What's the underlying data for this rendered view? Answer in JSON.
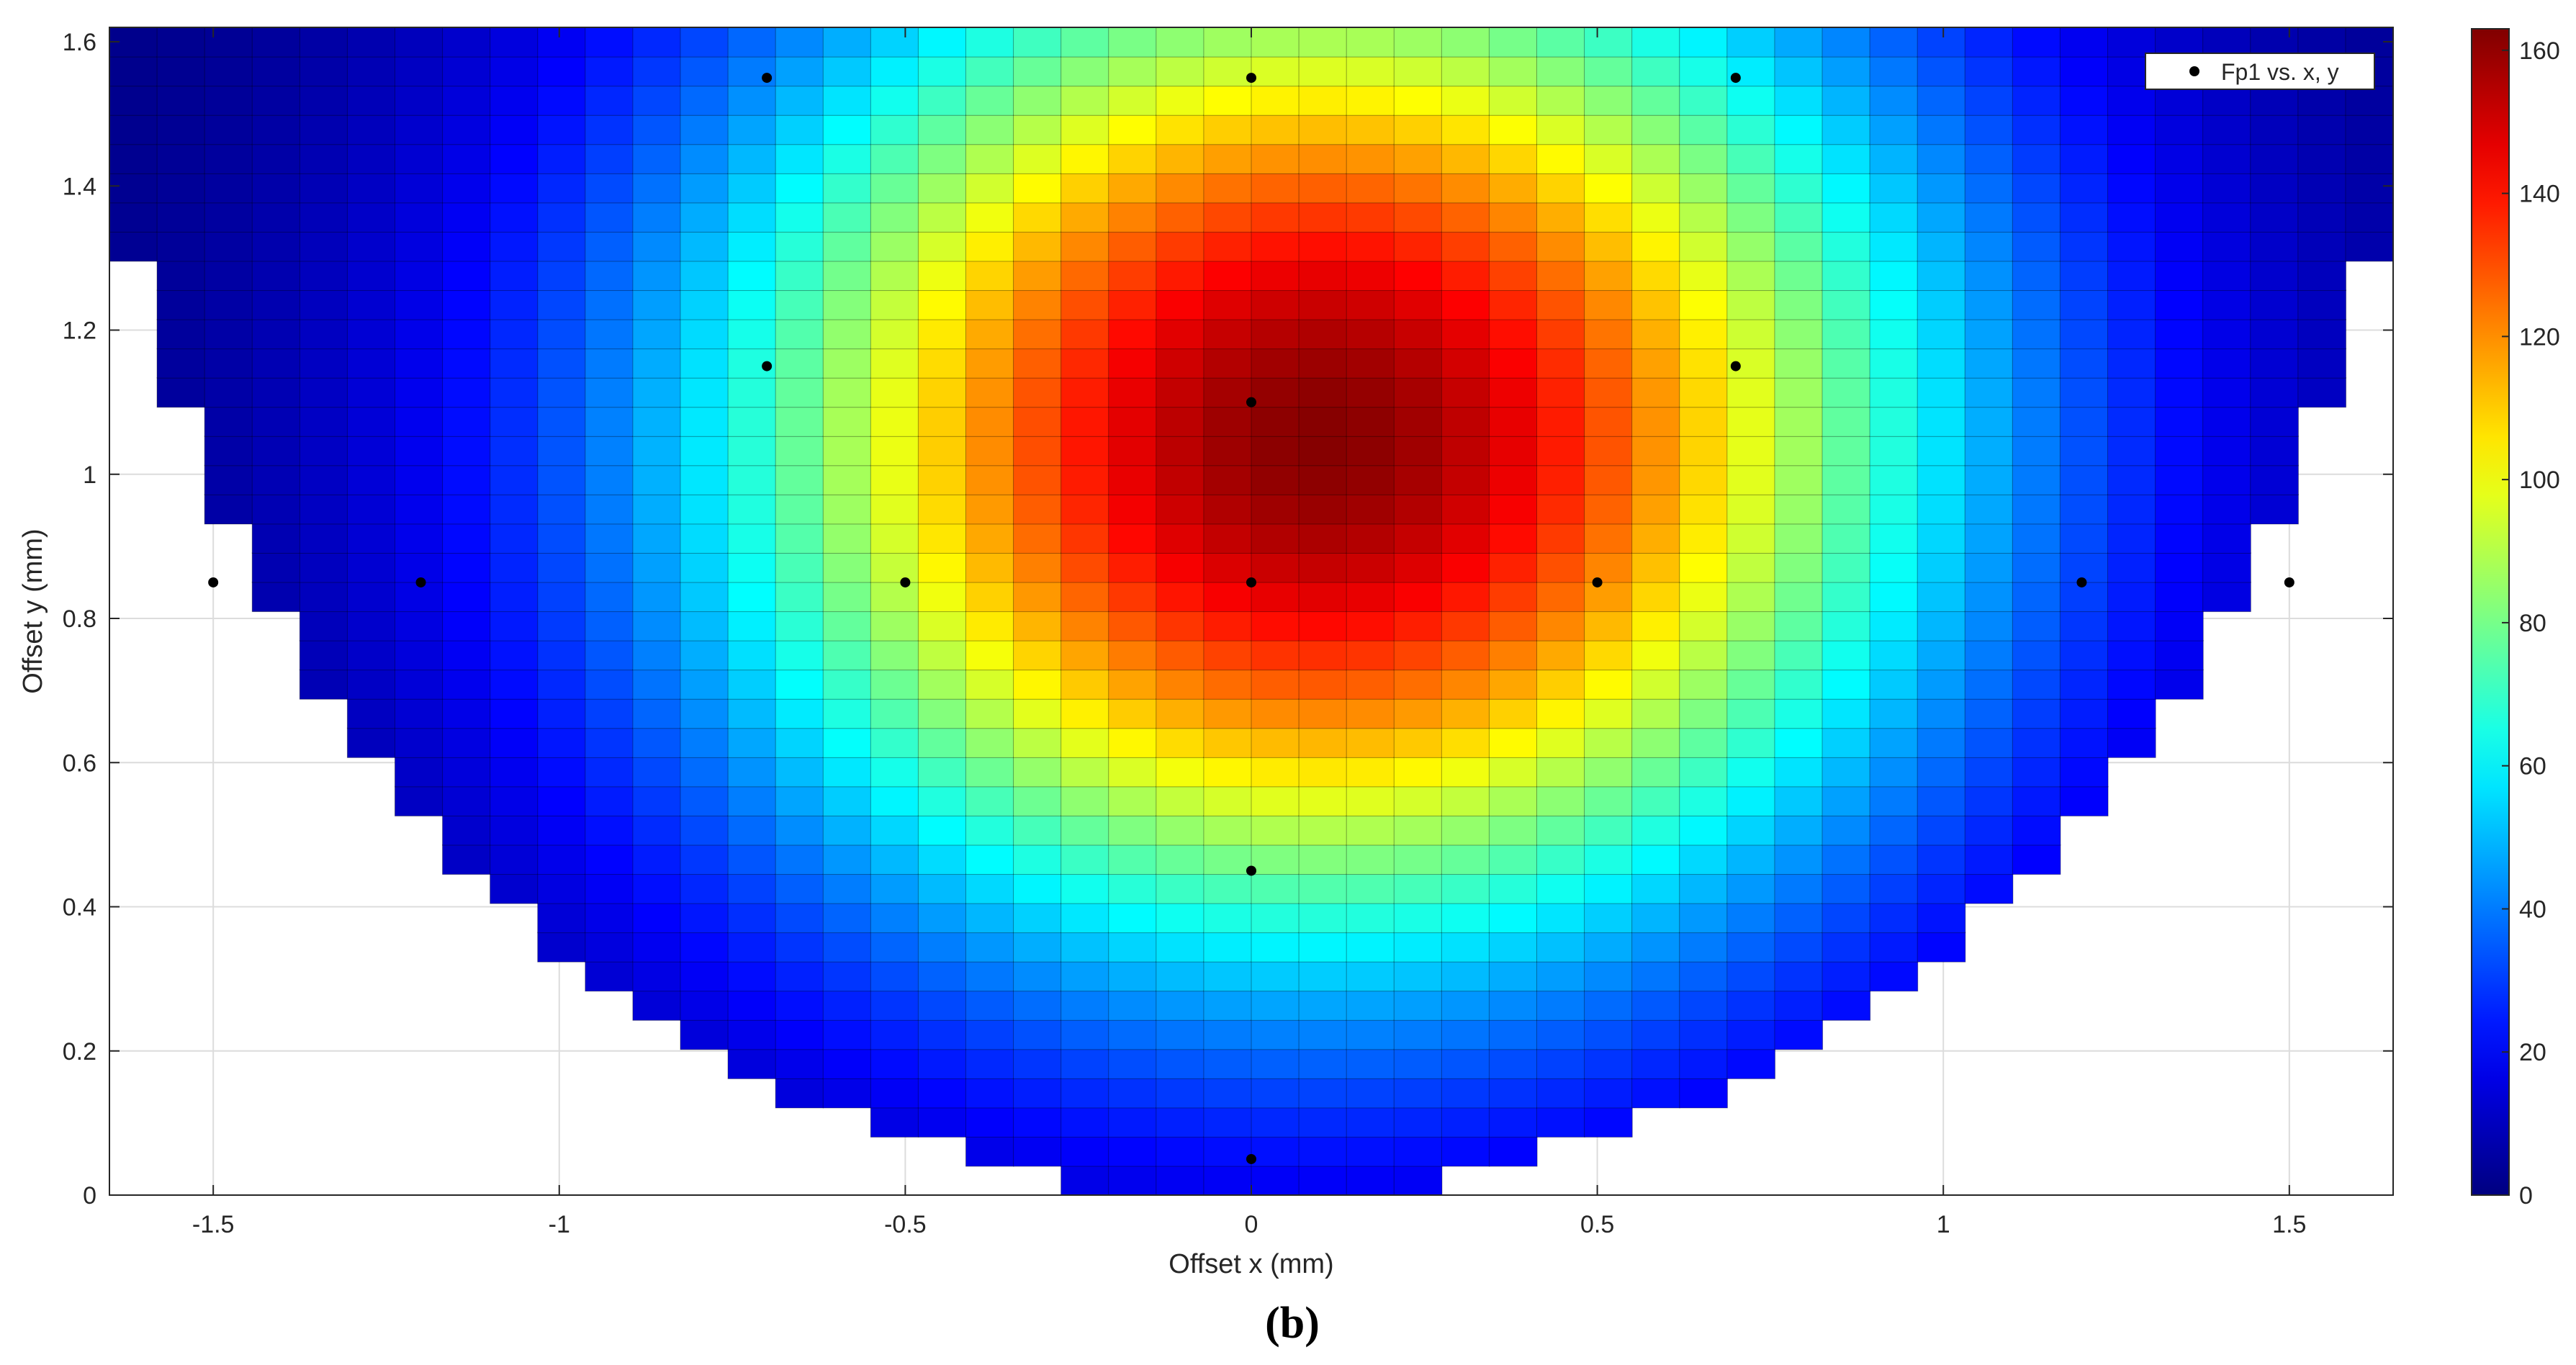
{
  "chart_data": {
    "type": "heatmap",
    "title": "",
    "xlabel": "Offset x (mm)",
    "ylabel": "Offset y (mm)",
    "xlim": [
      -1.65,
      1.65
    ],
    "ylim": [
      0,
      1.62
    ],
    "x_ticks": [
      -1.5,
      -1,
      -0.5,
      0,
      0.5,
      1,
      1.5
    ],
    "x_tick_labels": [
      "-1.5",
      "-1",
      "-0.5",
      "0",
      "0.5",
      "1",
      "1.5"
    ],
    "y_ticks": [
      0,
      0.2,
      0.4,
      0.6,
      0.8,
      1,
      1.2,
      1.4,
      1.6
    ],
    "y_tick_labels": [
      "0",
      "0.2",
      "0.4",
      "0.6",
      "0.8",
      "1",
      "1.2",
      "1.4",
      "1.6"
    ],
    "grid": true,
    "colormap": "jet",
    "color_range": [
      0,
      163
    ],
    "colorbar_ticks": [
      0,
      20,
      40,
      60,
      80,
      100,
      120,
      140,
      160
    ],
    "colorbar_tick_labels": [
      "0",
      "20",
      "40",
      "60",
      "80",
      "100",
      "120",
      "140",
      "160"
    ],
    "grid_columns": 48,
    "grid_rows": 40,
    "peak": {
      "x": 0.1,
      "y": 1.05,
      "value": 162
    },
    "domain_boundary": "circle centered at (0, 1.65) with radius 1.65; region below the arc is empty",
    "legend": {
      "label": "Fp1 vs. x, y",
      "placement": "top-right"
    },
    "series": [
      {
        "name": "Fp1 vs. x, y",
        "marker": "dot",
        "color": "#000000",
        "points": [
          {
            "x": -0.7,
            "y": 1.55
          },
          {
            "x": 0,
            "y": 1.55
          },
          {
            "x": 0.7,
            "y": 1.55
          },
          {
            "x": -0.7,
            "y": 1.15
          },
          {
            "x": 0,
            "y": 1.1
          },
          {
            "x": 0.7,
            "y": 1.15
          },
          {
            "x": -1.5,
            "y": 0.85
          },
          {
            "x": -1.2,
            "y": 0.85
          },
          {
            "x": -0.5,
            "y": 0.85
          },
          {
            "x": 0,
            "y": 0.85
          },
          {
            "x": 0.5,
            "y": 0.85
          },
          {
            "x": 1.2,
            "y": 0.85
          },
          {
            "x": 1.5,
            "y": 0.85
          },
          {
            "x": 0,
            "y": 0.45
          },
          {
            "x": 0,
            "y": 0.05
          }
        ]
      }
    ]
  },
  "caption": "(b)"
}
